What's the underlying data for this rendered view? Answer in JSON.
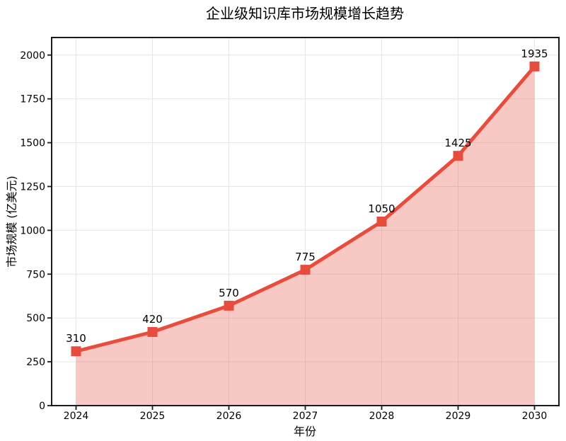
{
  "page": {
    "background": "#ffffff"
  },
  "chart_data": {
    "type": "line",
    "title": "企业级知识库市场规模增长趋势",
    "xlabel": "年份",
    "ylabel": "市场规模 (亿美元)",
    "x": [
      "2024",
      "2025",
      "2026",
      "2027",
      "2028",
      "2029",
      "2030"
    ],
    "values": [
      310,
      420,
      570,
      775,
      1050,
      1425,
      1935
    ],
    "ylim": [
      0,
      2100
    ],
    "yticks": [
      0,
      250,
      500,
      750,
      1000,
      1250,
      1500,
      1750,
      2000
    ],
    "grid": true,
    "legend": false,
    "data_labels_visible": true,
    "marker": "square",
    "style": {
      "line_color": "#e74c3c",
      "marker_color": "#e74c3c",
      "fill_color": "#e74c3c",
      "fill_opacity": 0.3,
      "grid_color": "#e6e6e6",
      "axis_color": "#1a1a1a",
      "text_color": "#000000"
    }
  }
}
